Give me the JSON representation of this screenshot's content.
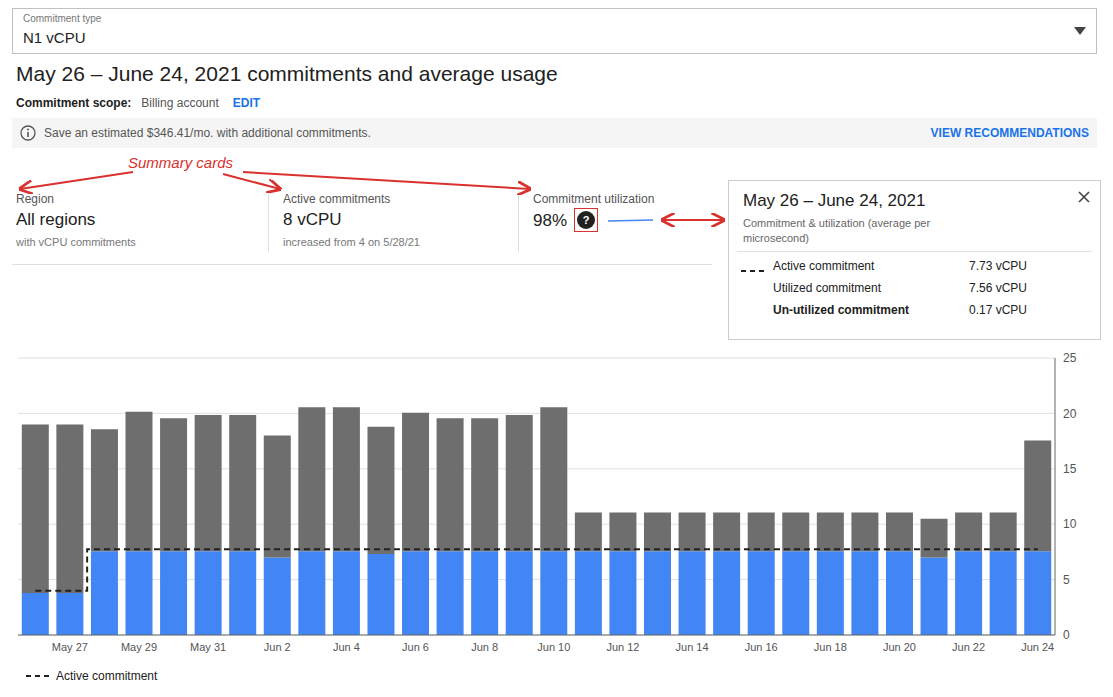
{
  "chart_data": {
    "type": "bar",
    "title": "May 26 – June 24, 2021 commitments and average usage",
    "annotations": [
      "Commitment type",
      "N1 vCPU",
      "Commitment scope:",
      "Billing account",
      "EDIT",
      "Save an estimated $346.41/mo. with additional commitments.",
      "VIEW RECOMMENDATIONS",
      "Summary cards",
      "Region",
      "All regions",
      "with vCPU commitments",
      "Active commitments",
      "8 vCPU",
      "increased from 4 on 5/28/21",
      "Commitment utilization",
      "98%",
      "?",
      "May 26 – June 24, 2021",
      "Commitment & utilization (average per",
      "microsecond)",
      "Active commitment",
      "7.73 vCPU",
      "Utilized commitment",
      "7.56 vCPU",
      "Un-utilized commitment",
      "0.17 vCPU"
    ],
    "categories": [
      null,
      "May 27",
      null,
      "May 29",
      null,
      "May 31",
      null,
      "Jun 2",
      null,
      "Jun 4",
      null,
      "Jun 6",
      null,
      "Jun 8",
      null,
      "Jun 10",
      null,
      "Jun 12",
      null,
      "Jun 14",
      null,
      "Jun 16",
      null,
      "Jun 18",
      null,
      "Jun 20",
      null,
      "Jun 22",
      null,
      "Jun 24"
    ],
    "series": [
      {
        "color": "#4285f4",
        "values": [
          3.8,
          3.8,
          7.56,
          7.56,
          7.56,
          7.56,
          7.56,
          7.0,
          7.56,
          7.56,
          7.3,
          7.56,
          7.56,
          7.56,
          7.56,
          7.56,
          7.56,
          7.56,
          7.56,
          7.56,
          7.56,
          7.56,
          7.56,
          7.56,
          7.56,
          7.56,
          7.0,
          7.56,
          7.56,
          7.56
        ]
      },
      {
        "color": "#6e6e6e",
        "values": [
          15.2,
          15.2,
          11.0,
          12.6,
          12.0,
          12.3,
          12.3,
          11.0,
          13.0,
          13.0,
          11.5,
          12.5,
          12.0,
          12.0,
          12.3,
          13.0,
          3.5,
          3.5,
          3.5,
          3.5,
          3.5,
          3.5,
          3.5,
          3.5,
          3.5,
          3.5,
          3.5,
          3.5,
          3.5,
          10.0
        ]
      },
      {
        "name": "Active commitment",
        "type": "line",
        "line_style": "dashed",
        "color": "#212121",
        "values": [
          4.0,
          4.0,
          7.73,
          7.73,
          7.73,
          7.73,
          7.73,
          7.73,
          7.73,
          7.73,
          7.73,
          7.73,
          7.73,
          7.73,
          7.73,
          7.73,
          7.73,
          7.73,
          7.73,
          7.73,
          7.73,
          7.73,
          7.73,
          7.73,
          7.73,
          7.73,
          7.73,
          7.73,
          7.73,
          7.73
        ]
      }
    ],
    "stacked": true,
    "ylim": [
      0,
      25
    ],
    "yticks": [
      0,
      5,
      10,
      15,
      20,
      25
    ],
    "grid": true,
    "legend": "bottom"
  }
}
